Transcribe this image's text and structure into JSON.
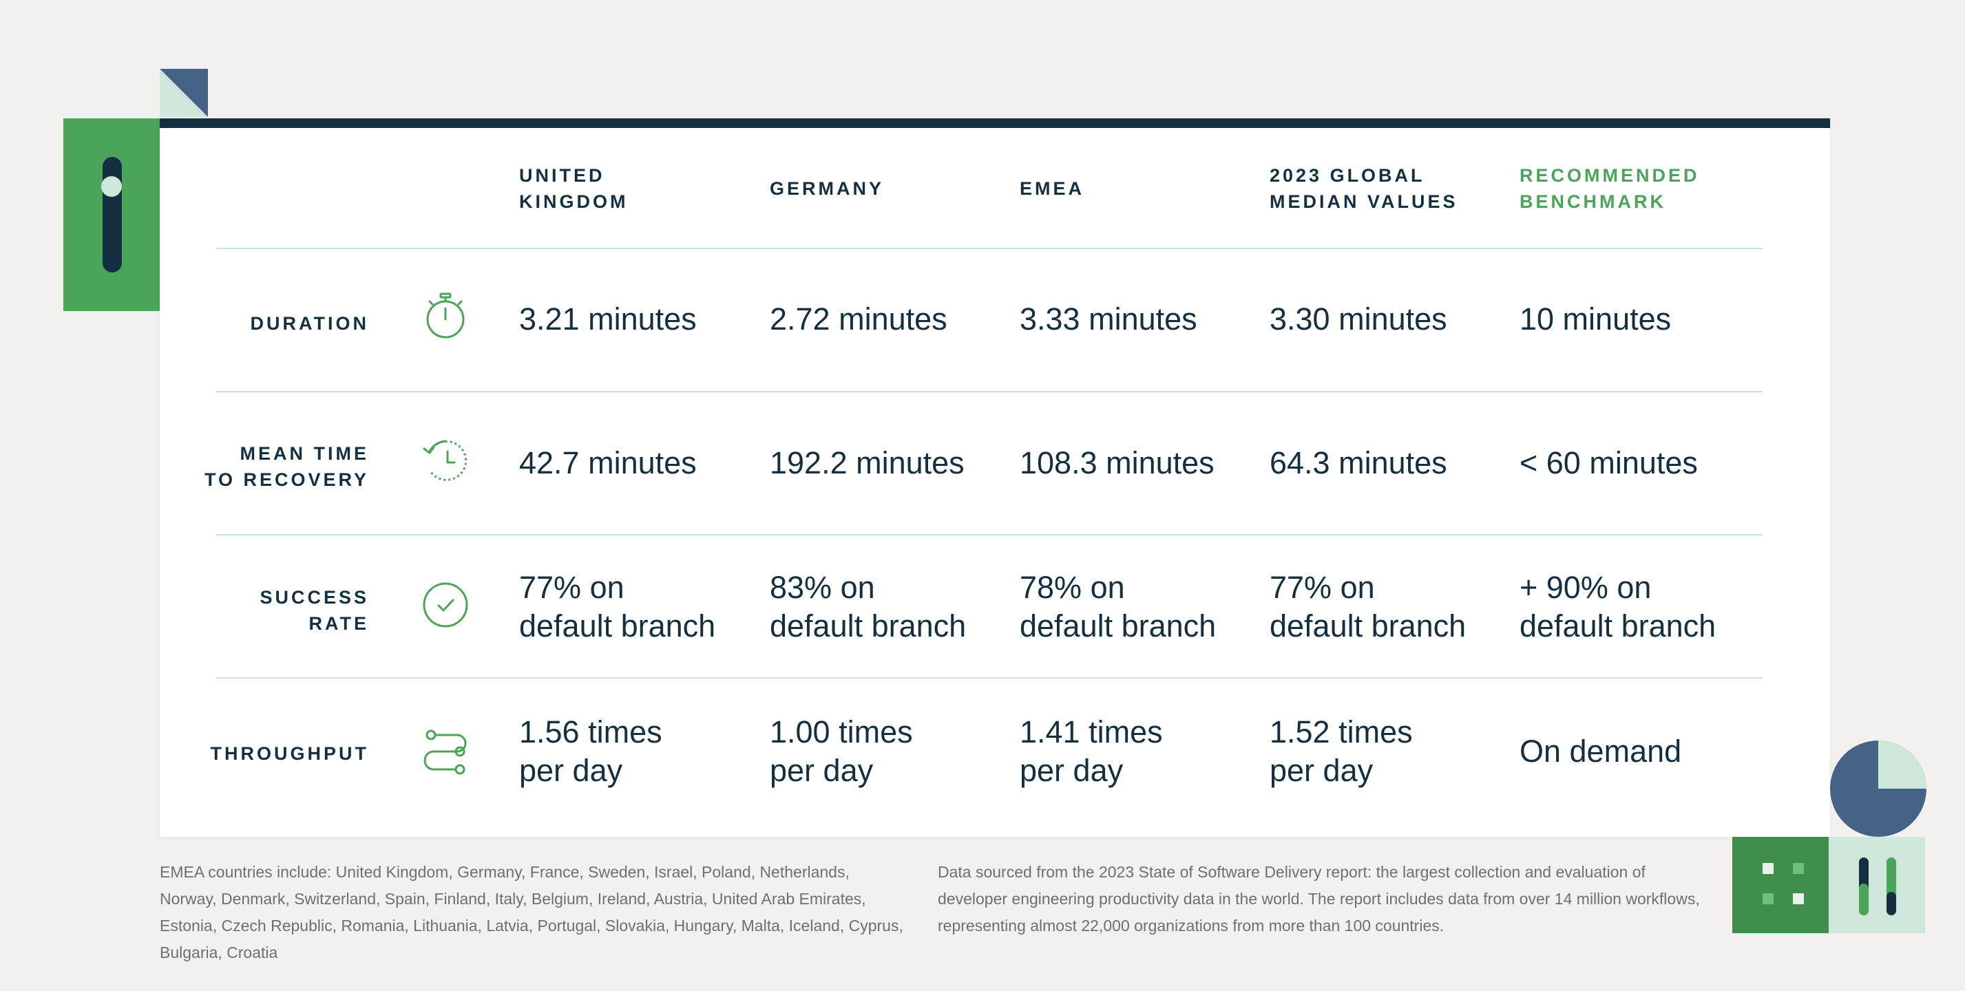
{
  "colors": {
    "navy": "#143040",
    "green": "#4aa558",
    "dark_green": "#3f8e4c",
    "mint": "#cfe6da",
    "slate_blue": "#456485",
    "divider": "#cfe3de",
    "background": "#f2f1ef",
    "footnote_text": "#6f6f6f"
  },
  "table": {
    "headers": [
      "UNITED\nKINGDOM",
      "GERMANY",
      "EMEA",
      "2023 GLOBAL\nMEDIAN VALUES",
      "RECOMMENDED\nBENCHMARK"
    ],
    "rows": [
      {
        "label": "DURATION",
        "icon": "stopwatch-icon",
        "values": [
          "3.21 minutes",
          "2.72 minutes",
          "3.33 minutes",
          "3.30 minutes",
          "10 minutes"
        ]
      },
      {
        "label": "MEAN TIME\nTO RECOVERY",
        "icon": "clock-rewind-icon",
        "values": [
          "42.7 minutes",
          "192.2 minutes",
          "108.3 minutes",
          "64.3 minutes",
          "< 60 minutes"
        ]
      },
      {
        "label": "SUCCESS\nRATE",
        "icon": "check-circle-icon",
        "values": [
          "77% on\ndefault branch",
          "83% on\ndefault branch",
          "78% on\ndefault branch",
          "77% on\ndefault branch",
          "+ 90% on\ndefault branch"
        ]
      },
      {
        "label": "THROUGHPUT",
        "icon": "workflow-nodes-icon",
        "values": [
          "1.56 times\nper day",
          "1.00 times\nper day",
          "1.41 times\nper day",
          "1.52 times\nper day",
          "On demand"
        ]
      }
    ]
  },
  "footnotes": {
    "left": "EMEA countries include: United Kingdom, Germany, France, Sweden, Israel, Poland, Netherlands, Norway, Denmark, Switzerland, Spain, Finland, Italy, Belgium, Ireland, Austria, United Arab Emirates, Estonia, Czech Republic, Romania, Lithuania, Latvia, Portugal, Slovakia, Hungary, Malta, Iceland, Cyprus, Bulgaria, Croatia",
    "right": "Data sourced from the 2023 State of Software Delivery report: the largest collection and evaluation of developer engineering productivity data in the world. The report includes data from over 14 million workflows, representing almost 22,000 organizations from more than 100 countries."
  }
}
